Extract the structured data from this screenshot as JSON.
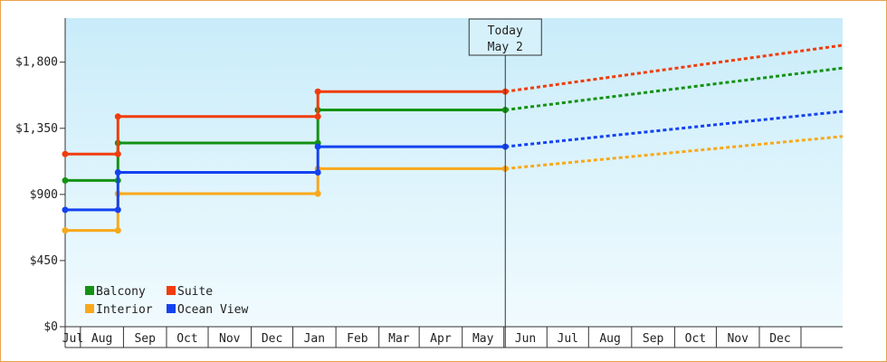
{
  "chart_data": {
    "type": "line",
    "title": "",
    "xlabel": "",
    "ylabel": "",
    "ylim": [
      0,
      2100
    ],
    "y_ticks": [
      {
        "value": 0,
        "label": "$0"
      },
      {
        "value": 450,
        "label": "$450"
      },
      {
        "value": 900,
        "label": "$900"
      },
      {
        "value": 1350,
        "label": "$1,350"
      },
      {
        "value": 1800,
        "label": "$1,800"
      }
    ],
    "x_axis_months": [
      "Jul",
      "Aug",
      "Sep",
      "Oct",
      "Nov",
      "Dec",
      "Jan",
      "Feb",
      "Mar",
      "Apr",
      "May",
      "Jun",
      "Jul",
      "Aug",
      "Sep",
      "Oct",
      "Nov",
      "Dec"
    ],
    "x_start": "2023-06-20",
    "x_end": "2024-12-31",
    "today": {
      "line1": "Today",
      "line2": "May 2",
      "date": "2024-05-02"
    },
    "grid": false,
    "legend_position": "bottom-left",
    "background": {
      "top": "#c9ecfa",
      "bottom": "#f1fbfe"
    },
    "series": [
      {
        "name": "Balcony",
        "color": "#149214",
        "history": [
          [
            "2023-06-20",
            995
          ],
          [
            "2023-07-28",
            995
          ],
          [
            "2023-07-28",
            1250
          ],
          [
            "2023-12-19",
            1250
          ],
          [
            "2023-12-19",
            1475
          ],
          [
            "2024-05-02",
            1475
          ]
        ],
        "projection": [
          [
            "2024-05-02",
            1475
          ],
          [
            "2024-12-31",
            1760
          ]
        ]
      },
      {
        "name": "Suite",
        "color": "#f03c0c",
        "history": [
          [
            "2023-06-20",
            1175
          ],
          [
            "2023-07-28",
            1175
          ],
          [
            "2023-07-28",
            1430
          ],
          [
            "2023-12-19",
            1430
          ],
          [
            "2023-12-19",
            1600
          ],
          [
            "2024-05-02",
            1600
          ]
        ],
        "projection": [
          [
            "2024-05-02",
            1600
          ],
          [
            "2024-12-31",
            1915
          ]
        ]
      },
      {
        "name": "Interior",
        "color": "#f8a81a",
        "history": [
          [
            "2023-06-20",
            655
          ],
          [
            "2023-07-28",
            655
          ],
          [
            "2023-07-28",
            905
          ],
          [
            "2023-12-19",
            905
          ],
          [
            "2023-12-19",
            1075
          ],
          [
            "2024-05-02",
            1075
          ]
        ],
        "projection": [
          [
            "2024-05-02",
            1075
          ],
          [
            "2024-12-31",
            1295
          ]
        ]
      },
      {
        "name": "Ocean View",
        "color": "#1442f0",
        "history": [
          [
            "2023-06-20",
            795
          ],
          [
            "2023-07-28",
            795
          ],
          [
            "2023-07-28",
            1050
          ],
          [
            "2023-12-19",
            1050
          ],
          [
            "2023-12-19",
            1225
          ],
          [
            "2024-05-02",
            1225
          ]
        ],
        "projection": [
          [
            "2024-05-02",
            1225
          ],
          [
            "2024-12-31",
            1465
          ]
        ]
      }
    ]
  }
}
